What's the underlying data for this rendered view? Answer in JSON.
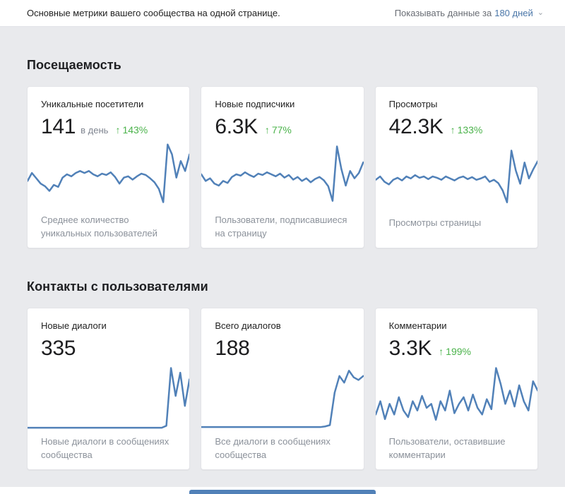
{
  "header": {
    "subtitle": "Основные метрики вашего сообщества на одной странице.",
    "period_label": "Показывать данные за",
    "period_value": "180 дней",
    "chevron": "⌄"
  },
  "colors": {
    "chart_line": "#5181b8",
    "delta_green": "#4bb34b",
    "link_blue": "#4a76a8",
    "panel_gray": "#e9eaed",
    "accent_bar": "#5181b8"
  },
  "sections": [
    {
      "title": "Посещаемость",
      "cards": [
        {
          "title": "Уникальные посетители",
          "value": "141",
          "unit": "в день",
          "delta_arrow": "↑",
          "delta": "143%",
          "description": "Среднее количество уникальных пользователей"
        },
        {
          "title": "Новые подписчики",
          "value": "6.3K",
          "delta_arrow": "↑",
          "delta": "77%",
          "description": "Пользователи, подписавшиеся на страницу"
        },
        {
          "title": "Просмотры",
          "value": "42.3K",
          "delta_arrow": "↑",
          "delta": "133%",
          "description": "Просмотры страницы"
        }
      ]
    },
    {
      "title": "Контакты с пользователями",
      "cards": [
        {
          "title": "Новые диалоги",
          "value": "335",
          "description": "Новые диалоги в сообщениях сообщества"
        },
        {
          "title": "Всего диалогов",
          "value": "188",
          "description": "Все диалоги в сообщениях сообщества"
        },
        {
          "title": "Комментарии",
          "value": "3.3K",
          "delta_arrow": "↑",
          "delta": "199%",
          "description": "Пользователи, оставившие комментарии"
        }
      ]
    }
  ],
  "chart_data": [
    {
      "type": "line",
      "title": "Уникальные посетители",
      "ylim": [
        0,
        100
      ],
      "values": [
        40,
        52,
        44,
        36,
        32,
        25,
        34,
        31,
        45,
        50,
        47,
        52,
        55,
        52,
        55,
        50,
        47,
        51,
        49,
        53,
        46,
        36,
        45,
        47,
        42,
        47,
        51,
        49,
        44,
        38,
        28,
        8,
        95,
        80,
        45,
        70,
        55,
        80
      ]
    },
    {
      "type": "line",
      "title": "Новые подписчики",
      "ylim": [
        0,
        100
      ],
      "values": [
        50,
        40,
        44,
        36,
        33,
        40,
        37,
        46,
        50,
        48,
        53,
        49,
        46,
        51,
        49,
        53,
        50,
        47,
        51,
        45,
        49,
        42,
        46,
        40,
        44,
        38,
        43,
        46,
        41,
        32,
        10,
        92,
        58,
        33,
        55,
        44,
        52,
        68
      ]
    },
    {
      "type": "line",
      "title": "Просмотры",
      "ylim": [
        0,
        100
      ],
      "values": [
        46,
        51,
        43,
        39,
        46,
        49,
        45,
        51,
        48,
        53,
        49,
        51,
        47,
        51,
        49,
        46,
        51,
        48,
        45,
        49,
        51,
        47,
        50,
        46,
        48,
        51,
        43,
        46,
        41,
        30,
        12,
        90,
        60,
        40,
        72,
        48,
        62,
        74
      ]
    },
    {
      "type": "line",
      "title": "Новые диалоги",
      "ylim": [
        0,
        100
      ],
      "values": [
        2,
        2,
        2,
        2,
        2,
        2,
        2,
        2,
        2,
        2,
        2,
        2,
        2,
        2,
        2,
        2,
        2,
        2,
        2,
        2,
        2,
        2,
        2,
        2,
        2,
        2,
        2,
        2,
        2,
        2,
        5,
        92,
        50,
        85,
        35,
        75
      ]
    },
    {
      "type": "line",
      "title": "Всего диалогов",
      "ylim": [
        0,
        100
      ],
      "values": [
        3,
        3,
        3,
        3,
        3,
        3,
        3,
        3,
        3,
        3,
        3,
        3,
        3,
        3,
        3,
        3,
        3,
        3,
        3,
        3,
        3,
        3,
        3,
        3,
        3,
        3,
        4,
        6,
        55,
        80,
        70,
        88,
        78,
        74,
        80
      ]
    },
    {
      "type": "line",
      "title": "Комментарии",
      "ylim": [
        0,
        100
      ],
      "values": [
        22,
        42,
        15,
        38,
        22,
        48,
        28,
        18,
        42,
        28,
        50,
        32,
        38,
        14,
        42,
        28,
        58,
        24,
        38,
        48,
        28,
        52,
        32,
        22,
        45,
        30,
        92,
        68,
        38,
        58,
        34,
        66,
        42,
        28,
        72,
        58
      ]
    }
  ]
}
